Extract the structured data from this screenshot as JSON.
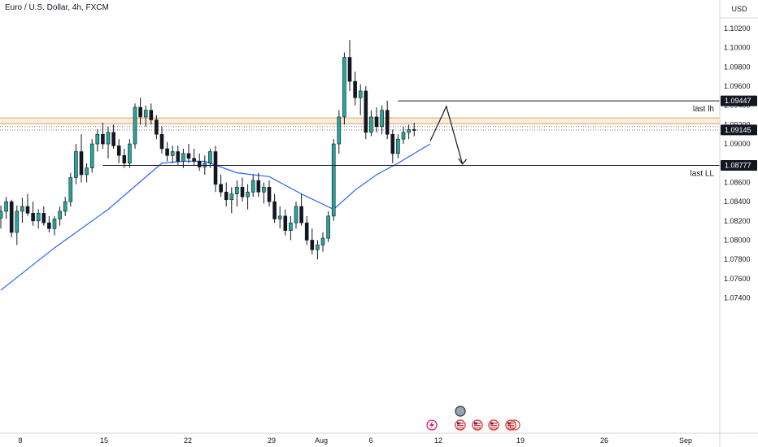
{
  "header": {
    "title": "Euro / U.S. Dollar, 4h, FXCM",
    "currency": "USD"
  },
  "chart_data": {
    "type": "candlestick",
    "ylim": [
      1.073,
      1.1025
    ],
    "y_ticks": [
      "1.10200",
      "1.10000",
      "1.09800",
      "1.09600",
      "1.09400",
      "1.09200",
      "1.09000",
      "1.08600",
      "1.08400",
      "1.08200",
      "1.08000",
      "1.07800",
      "1.07600",
      "1.07400"
    ],
    "x_ticks": [
      "8",
      "15",
      "22",
      "29",
      "Aug",
      "6",
      "12",
      "19",
      "26",
      "Sep"
    ],
    "price_tags": [
      {
        "value": 1.09447,
        "label": "1.09447"
      },
      {
        "value": 1.09145,
        "label": "1.09145"
      },
      {
        "value": 1.08777,
        "label": "1.08777"
      }
    ],
    "levels": [
      {
        "name": "last lh",
        "value": 1.09447
      },
      {
        "name": "last LL",
        "value": 1.08777
      }
    ],
    "zone": {
      "from": 1.0921,
      "to": 1.0927
    },
    "colors": {
      "up": "#26a69a",
      "down": "#131722",
      "ma": "#2962ff",
      "zone_border": "#e0a060",
      "zone_fill": "#fbeedd"
    },
    "candles": [
      [
        1.0823,
        1.0836,
        1.0812,
        1.083
      ],
      [
        1.083,
        1.0845,
        1.0822,
        1.084
      ],
      [
        1.084,
        1.0842,
        1.0803,
        1.0808
      ],
      [
        1.0808,
        1.0836,
        1.0795,
        1.083
      ],
      [
        1.083,
        1.0844,
        1.0818,
        1.0835
      ],
      [
        1.0835,
        1.0848,
        1.0825,
        1.0828
      ],
      [
        1.0828,
        1.084,
        1.0815,
        1.082
      ],
      [
        1.082,
        1.0832,
        1.0812,
        1.0828
      ],
      [
        1.0828,
        1.0835,
        1.0815,
        1.0818
      ],
      [
        1.0818,
        1.0825,
        1.0808,
        1.0812
      ],
      [
        1.0812,
        1.0825,
        1.0805,
        1.0822
      ],
      [
        1.0822,
        1.0835,
        1.0815,
        1.083
      ],
      [
        1.083,
        1.0845,
        1.0825,
        1.084
      ],
      [
        1.084,
        1.087,
        1.0835,
        1.0865
      ],
      [
        1.0865,
        1.09,
        1.0858,
        1.0892
      ],
      [
        1.0892,
        1.091,
        1.086,
        1.0868
      ],
      [
        1.0868,
        1.088,
        1.086,
        1.0875
      ],
      [
        1.0875,
        1.0905,
        1.087,
        1.09
      ],
      [
        1.09,
        1.0915,
        1.0892,
        1.091
      ],
      [
        1.091,
        1.0922,
        1.0895,
        1.09
      ],
      [
        1.09,
        1.0918,
        1.0885,
        1.0912
      ],
      [
        1.0912,
        1.092,
        1.0895,
        1.0898
      ],
      [
        1.0898,
        1.0905,
        1.088,
        1.0888
      ],
      [
        1.0888,
        1.0895,
        1.0875,
        1.088
      ],
      [
        1.088,
        1.0905,
        1.0875,
        1.09
      ],
      [
        1.09,
        1.0942,
        1.0895,
        1.0938
      ],
      [
        1.0938,
        1.0948,
        1.092,
        1.0928
      ],
      [
        1.0928,
        1.094,
        1.0918,
        1.0935
      ],
      [
        1.0935,
        1.0942,
        1.092,
        1.0925
      ],
      [
        1.0925,
        1.093,
        1.0905,
        1.091
      ],
      [
        1.091,
        1.0918,
        1.089,
        1.0895
      ],
      [
        1.0895,
        1.0902,
        1.0882,
        1.0888
      ],
      [
        1.0888,
        1.0898,
        1.088,
        1.0892
      ],
      [
        1.0892,
        1.0898,
        1.0878,
        1.0882
      ],
      [
        1.0882,
        1.0895,
        1.0875,
        1.089
      ],
      [
        1.089,
        1.09,
        1.088,
        1.0885
      ],
      [
        1.0885,
        1.0895,
        1.0878,
        1.0882
      ],
      [
        1.0882,
        1.089,
        1.0872,
        1.0876
      ],
      [
        1.0876,
        1.0888,
        1.0868,
        1.088
      ],
      [
        1.088,
        1.0895,
        1.0875,
        1.0892
      ],
      [
        1.0892,
        1.0898,
        1.085,
        1.0858
      ],
      [
        1.0858,
        1.0868,
        1.0845,
        1.085
      ],
      [
        1.085,
        1.086,
        1.0835,
        1.0842
      ],
      [
        1.0842,
        1.0855,
        1.0828,
        1.0848
      ],
      [
        1.0848,
        1.0862,
        1.0835,
        1.0855
      ],
      [
        1.0855,
        1.0865,
        1.084,
        1.0845
      ],
      [
        1.0845,
        1.0858,
        1.0832,
        1.085
      ],
      [
        1.085,
        1.0868,
        1.0845,
        1.0862
      ],
      [
        1.0862,
        1.087,
        1.0845,
        1.085
      ],
      [
        1.085,
        1.086,
        1.0838,
        1.0855
      ],
      [
        1.0855,
        1.0862,
        1.0835,
        1.084
      ],
      [
        1.084,
        1.0848,
        1.0818,
        1.0822
      ],
      [
        1.0822,
        1.0835,
        1.0812,
        1.0825
      ],
      [
        1.0825,
        1.0832,
        1.0805,
        1.081
      ],
      [
        1.081,
        1.0825,
        1.08,
        1.0818
      ],
      [
        1.0818,
        1.084,
        1.0812,
        1.0835
      ],
      [
        1.0835,
        1.0848,
        1.0815,
        1.0818
      ],
      [
        1.0818,
        1.0825,
        1.0795,
        1.08
      ],
      [
        1.08,
        1.0812,
        1.0785,
        1.079
      ],
      [
        1.079,
        1.08,
        1.078,
        1.0795
      ],
      [
        1.0795,
        1.0808,
        1.0788,
        1.0802
      ],
      [
        1.0802,
        1.083,
        1.0798,
        1.0825
      ],
      [
        1.0825,
        1.0905,
        1.082,
        1.09
      ],
      [
        1.09,
        1.0935,
        1.089,
        1.0928
      ],
      [
        1.0928,
        1.0995,
        1.092,
        1.099
      ],
      [
        1.099,
        1.1008,
        1.0955,
        1.0965
      ],
      [
        1.0965,
        1.0975,
        1.094,
        1.0948
      ],
      [
        1.0948,
        1.0962,
        1.093,
        1.0955
      ],
      [
        1.0955,
        1.096,
        1.0905,
        1.0912
      ],
      [
        1.0912,
        1.0935,
        1.0908,
        1.0928
      ],
      [
        1.0928,
        1.0938,
        1.0912,
        1.0918
      ],
      [
        1.0918,
        1.094,
        1.091,
        1.0935
      ],
      [
        1.0935,
        1.0945,
        1.0905,
        1.091
      ],
      [
        1.091,
        1.0915,
        1.088,
        1.089
      ],
      [
        1.089,
        1.091,
        1.0885,
        1.0905
      ],
      [
        1.0905,
        1.0918,
        1.09,
        1.0912
      ],
      [
        1.0912,
        1.092,
        1.0905,
        1.0915
      ],
      [
        1.0915,
        1.0922,
        1.0908,
        1.0914
      ]
    ],
    "moving_average": [
      [
        0,
        1.0748
      ],
      [
        10,
        1.0792
      ],
      [
        20,
        1.0832
      ],
      [
        30,
        1.088
      ],
      [
        34,
        1.0882
      ],
      [
        38,
        1.0882
      ],
      [
        44,
        1.087
      ],
      [
        50,
        1.0866
      ],
      [
        56,
        1.0848
      ],
      [
        62,
        1.0832
      ],
      [
        66,
        1.0852
      ],
      [
        70,
        1.0868
      ],
      [
        74,
        1.088
      ],
      [
        77,
        1.089
      ],
      [
        80,
        1.09
      ]
    ],
    "projection": [
      [
        1.0903
      ],
      [
        1.0939
      ],
      [
        1.0879
      ]
    ]
  }
}
